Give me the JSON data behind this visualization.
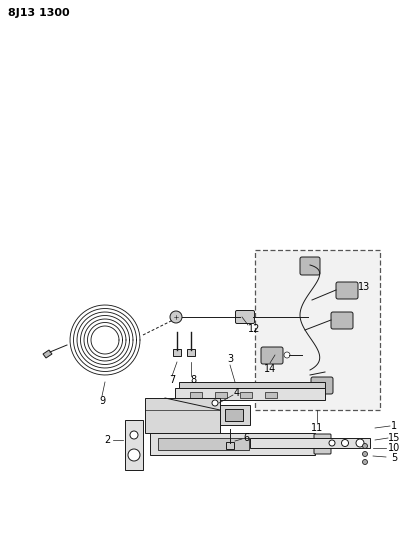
{
  "title": "8J13 1300",
  "bg_color": "#ffffff",
  "line_color": "#1a1a1a",
  "label_color": "#000000",
  "title_fontsize": 8.5,
  "label_fontsize": 7,
  "fig_width": 4.03,
  "fig_height": 5.33,
  "dpi": 100
}
